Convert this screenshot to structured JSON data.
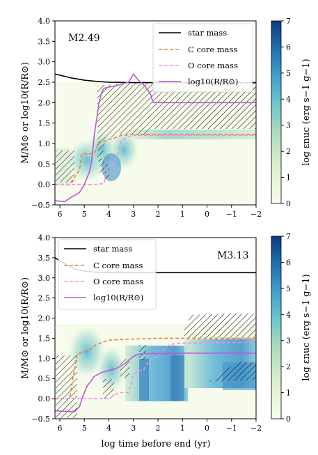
{
  "chart_data": [
    {
      "type": "line",
      "title": "M2.49",
      "xlabel": "",
      "ylabel": "M/M⊙ or log10(R/R⊙)",
      "xlim": [
        6.2,
        -2
      ],
      "ylim": [
        -0.5,
        4.0
      ],
      "x_ticks": [
        "6",
        "5",
        "4",
        "3",
        "2",
        "1",
        "0",
        "−1",
        "−2"
      ],
      "y_ticks": [
        "−0.5",
        "0.0",
        "0.5",
        "1.0",
        "1.5",
        "2.0",
        "2.5",
        "3.0",
        "3.5",
        "4.0"
      ],
      "legend_position": "top-right",
      "series": [
        {
          "name": "star mass",
          "color": "#000000",
          "style": "solid",
          "x": [
            6.2,
            5.5,
            5.0,
            4.5,
            4.0,
            3.0,
            2.0,
            1.0,
            -2.0
          ],
          "y": [
            2.7,
            2.6,
            2.55,
            2.52,
            2.5,
            2.49,
            2.49,
            2.49,
            2.49
          ]
        },
        {
          "name": "C core mass",
          "color": "#f07f35",
          "style": "dashed",
          "x": [
            6.2,
            5.6,
            5.2,
            5.1,
            4.6,
            4.4,
            4.2,
            4.0,
            3.7,
            3.5,
            3.0,
            2.0,
            -2.0
          ],
          "y": [
            0.0,
            0.0,
            0.35,
            0.75,
            0.75,
            1.05,
            1.05,
            1.1,
            1.15,
            1.2,
            1.22,
            1.22,
            1.22
          ]
        },
        {
          "name": "O core mass",
          "color": "#f08ee8",
          "style": "dashed",
          "x": [
            6.2,
            4.6,
            4.2,
            4.0,
            3.8,
            3.6,
            3.5,
            3.3,
            3.0,
            2.0,
            -2.0
          ],
          "y": [
            0.0,
            0.0,
            0.02,
            0.5,
            0.5,
            0.8,
            1.05,
            1.15,
            1.2,
            1.2,
            1.2
          ]
        },
        {
          "name": "log10(R/R⊙)",
          "color": "#c154d8",
          "style": "solid",
          "x": [
            6.2,
            5.8,
            5.5,
            5.2,
            5.0,
            4.9,
            4.8,
            4.7,
            4.6,
            4.5,
            4.4,
            4.3,
            4.2,
            4.0,
            3.8,
            3.5,
            3.2,
            3.0,
            2.8,
            2.6,
            2.4,
            2.3,
            2.2,
            2.1,
            2.0,
            -2.0
          ],
          "y": [
            -0.4,
            -0.42,
            -0.3,
            -0.2,
            0.0,
            0.15,
            0.3,
            0.6,
            1.2,
            1.6,
            2.0,
            2.25,
            2.35,
            2.38,
            2.4,
            2.45,
            2.5,
            2.7,
            2.55,
            2.45,
            2.3,
            2.2,
            2.0,
            2.0,
            2.0,
            2.0
          ]
        }
      ],
      "colorbar": {
        "label": "log εnuc (erg s−1 g−1)",
        "range": [
          0,
          7
        ],
        "ticks": [
          "0",
          "1",
          "2",
          "3",
          "4",
          "5",
          "6",
          "7"
        ]
      }
    },
    {
      "type": "line",
      "title": "M3.13",
      "xlabel": "log time before end (yr)",
      "ylabel": "M/M⊙ or log10(R/R⊙)",
      "xlim": [
        6.2,
        -2
      ],
      "ylim": [
        -0.5,
        4.0
      ],
      "x_ticks": [
        "6",
        "5",
        "4",
        "3",
        "2",
        "1",
        "0",
        "−1",
        "−2"
      ],
      "y_ticks": [
        "−0.5",
        "0.0",
        "0.5",
        "1.0",
        "1.5",
        "2.0",
        "2.5",
        "3.0",
        "3.5",
        "4.0"
      ],
      "legend_position": "top-left",
      "series": [
        {
          "name": "star mass",
          "color": "#000000",
          "style": "solid",
          "x": [
            6.2,
            5.8,
            5.4,
            5.0,
            4.5,
            4.0,
            3.0,
            2.0,
            -2.0
          ],
          "y": [
            3.5,
            3.35,
            3.22,
            3.17,
            3.14,
            3.13,
            3.13,
            3.13,
            3.13
          ]
        },
        {
          "name": "C core mass",
          "color": "#f07f35",
          "style": "dashed",
          "x": [
            6.2,
            5.6,
            5.5,
            5.3,
            4.8,
            4.5,
            4.0,
            3.5,
            3.0,
            2.5,
            2.0,
            1.0,
            -2.0
          ],
          "y": [
            0.0,
            0.0,
            0.4,
            1.1,
            1.2,
            1.35,
            1.45,
            1.47,
            1.48,
            1.49,
            1.5,
            1.5,
            1.5
          ]
        },
        {
          "name": "O core mass",
          "color": "#f08ee8",
          "style": "dashed",
          "x": [
            6.2,
            4.0,
            3.6,
            3.2,
            3.0,
            2.8,
            2.6,
            2.4,
            2.2,
            2.0,
            1.8,
            1.5,
            1.0,
            -2.0
          ],
          "y": [
            0.0,
            0.0,
            0.15,
            0.15,
            0.6,
            0.7,
            0.7,
            0.9,
            1.0,
            1.05,
            1.2,
            1.35,
            1.38,
            1.4
          ]
        },
        {
          "name": "log10(R/R⊙)",
          "color": "#c154d8",
          "style": "solid",
          "x": [
            6.2,
            5.7,
            5.4,
            5.2,
            5.1,
            4.9,
            4.6,
            4.3,
            4.0,
            3.7,
            3.4,
            3.2,
            3.0,
            2.8,
            2.6,
            2.4,
            2.2,
            2.0,
            1.5,
            1.0,
            -2.0
          ],
          "y": [
            -0.3,
            -0.32,
            -0.32,
            -0.2,
            0.0,
            0.3,
            0.55,
            0.65,
            0.7,
            0.75,
            0.85,
            0.95,
            1.05,
            1.1,
            1.12,
            1.12,
            1.12,
            1.12,
            1.12,
            1.13,
            1.13
          ]
        }
      ],
      "colorbar": {
        "label": "log εnuc (erg s−1 g−1)",
        "range": [
          0,
          7
        ],
        "ticks": [
          "0",
          "1",
          "2",
          "3",
          "4",
          "5",
          "6",
          "7"
        ]
      }
    }
  ]
}
